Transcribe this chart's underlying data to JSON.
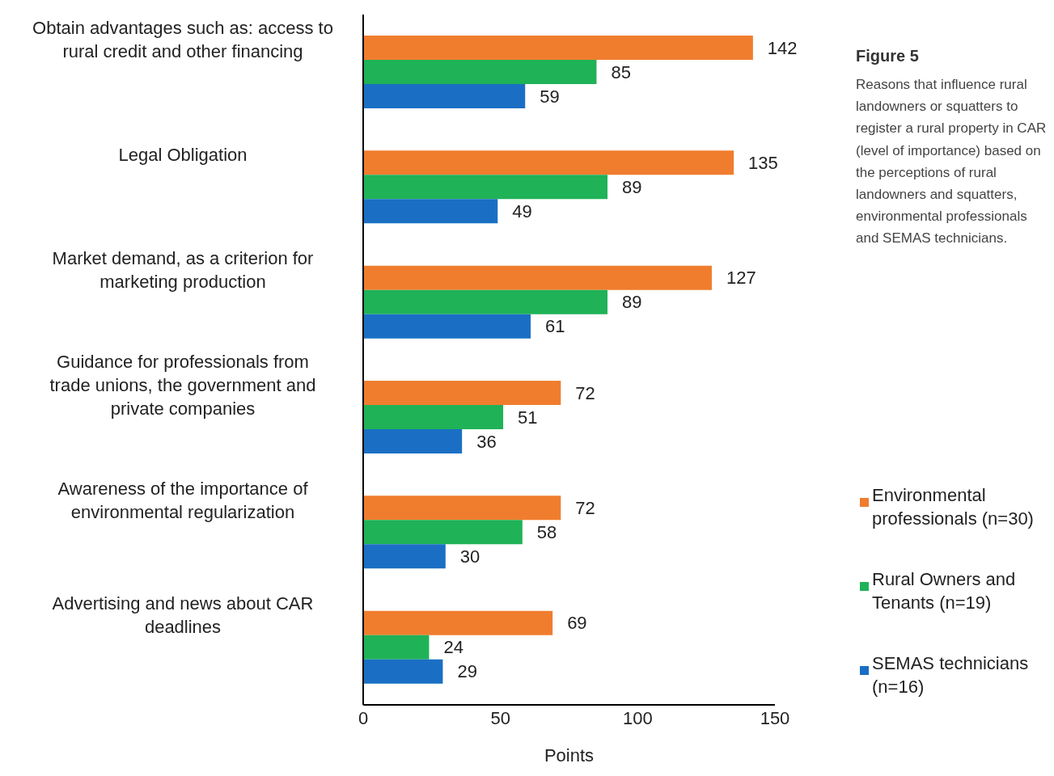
{
  "chart_data": {
    "type": "bar",
    "orientation": "horizontal",
    "title": "Figure 5",
    "subtitle": "Reasons that influence rural landowners or squatters to register a rural property in CAR (level of importance) based on the perceptions of rural landowners and squatters, environmental professionals and SEMAS technicians.",
    "categories": [
      "Obtain advantages such as: access to rural credit and other financing",
      "Legal Obligation",
      "Market demand, as a criterion for marketing production",
      "Guidance for professionals from trade unions, the government and private companies",
      "Awareness of the importance of environmental regularization",
      "Advertising and news about CAR deadlines"
    ],
    "series": [
      {
        "name": "Environmental professionals (n=30)",
        "color": "#f07d2e",
        "values": [
          142,
          135,
          127,
          72,
          72,
          69
        ]
      },
      {
        "name": "Rural Owners and Tenants (n=19)",
        "color": "#1fb257",
        "values": [
          85,
          89,
          89,
          51,
          58,
          24
        ]
      },
      {
        "name": "SEMAS technicians (n=16)",
        "color": "#1a6fc4",
        "values": [
          59,
          49,
          61,
          36,
          30,
          29
        ]
      }
    ],
    "xlabel": "Points",
    "xlim": [
      0,
      150
    ],
    "xticks": [
      0,
      50,
      100,
      150
    ],
    "data_labels": true,
    "grid": false,
    "legend": "right"
  }
}
